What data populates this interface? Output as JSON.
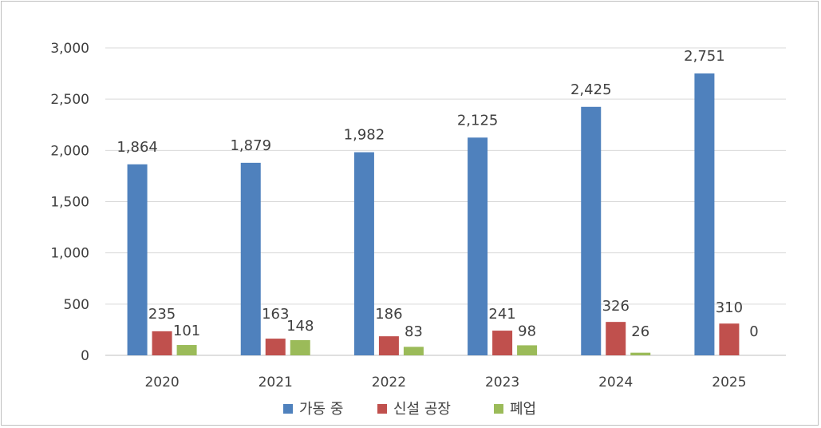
{
  "chart_data": {
    "type": "bar",
    "categories": [
      "2020",
      "2021",
      "2022",
      "2023",
      "2024",
      "2025"
    ],
    "series": [
      {
        "name": "가동 중",
        "color": "#4F81BD",
        "values": [
          1864,
          1879,
          1982,
          2125,
          2425,
          2751
        ],
        "labels": [
          "1,864",
          "1,879",
          "1,982",
          "2,125",
          "2,425",
          "2,751"
        ]
      },
      {
        "name": "신설 공장",
        "color": "#C0504D",
        "values": [
          235,
          163,
          186,
          241,
          326,
          310
        ],
        "labels": [
          "235",
          "163",
          "186",
          "241",
          "326",
          "310"
        ]
      },
      {
        "name": "폐업",
        "color": "#9BBB59",
        "values": [
          101,
          148,
          83,
          98,
          26,
          0
        ],
        "labels": [
          "101",
          "148",
          "83",
          "98",
          "26",
          "0"
        ]
      }
    ],
    "ylim": [
      0,
      3000
    ],
    "yticks": [
      0,
      500,
      1000,
      1500,
      2000,
      2500,
      3000
    ],
    "ytick_labels": [
      "0",
      "500",
      "1,000",
      "1,500",
      "2,000",
      "2,500",
      "3,000"
    ],
    "grid": true,
    "legend": "bottom"
  }
}
